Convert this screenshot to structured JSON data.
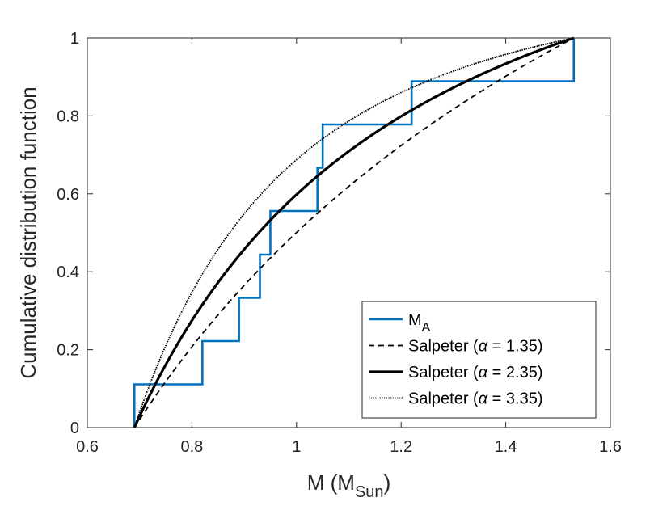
{
  "chart_data": {
    "type": "line",
    "xlabel": {
      "main": "M (M",
      "sub": "Sun",
      "close": ")"
    },
    "ylabel": "Cumulative distribution function",
    "xlim": [
      0.6,
      1.6
    ],
    "ylim": [
      0,
      1
    ],
    "xticks": [
      0.6,
      0.8,
      1.0,
      1.2,
      1.4,
      1.6
    ],
    "xtick_labels": [
      "0.6",
      "0.8",
      "1",
      "1.2",
      "1.4",
      "1.6"
    ],
    "yticks": [
      0,
      0.2,
      0.4,
      0.6,
      0.8,
      1.0
    ],
    "ytick_labels": [
      "0",
      "0.2",
      "0.4",
      "0.6",
      "0.8",
      "1"
    ],
    "grid": false,
    "box": true,
    "legend_position": "bottom-right",
    "mass_range": [
      0.69,
      1.53
    ],
    "series": [
      {
        "name": "M_A",
        "legend": {
          "main": "M",
          "sub": "A",
          "suffix": ""
        },
        "kind": "stairs",
        "color": "#0072BD",
        "style": "solid",
        "x": [
          0.69,
          0.69,
          0.82,
          0.82,
          0.89,
          0.89,
          0.93,
          0.93,
          0.95,
          0.95,
          1.04,
          1.04,
          1.05,
          1.05,
          1.22,
          1.22,
          1.53,
          1.53
        ],
        "y": [
          0.0,
          0.111,
          0.111,
          0.222,
          0.222,
          0.333,
          0.333,
          0.444,
          0.444,
          0.556,
          0.556,
          0.667,
          0.667,
          0.778,
          0.778,
          0.889,
          0.889,
          1.0
        ]
      },
      {
        "name": "Salpeter (α = 1.35)",
        "legend": {
          "prefix": "Salpeter (",
          "alpha": "α",
          "suffix": " = 1.35)"
        },
        "kind": "salpeter",
        "alpha": 1.35,
        "color": "#000000",
        "style": "dashed"
      },
      {
        "name": "Salpeter (α = 2.35)",
        "legend": {
          "prefix": "Salpeter (",
          "alpha": "α",
          "suffix": " = 2.35)"
        },
        "kind": "salpeter",
        "alpha": 2.35,
        "color": "#000000",
        "style": "thick"
      },
      {
        "name": "Salpeter (α = 3.35)",
        "legend": {
          "prefix": "Salpeter (",
          "alpha": "α",
          "suffix": " = 3.35)"
        },
        "kind": "salpeter",
        "alpha": 3.35,
        "color": "#000000",
        "style": "dotted"
      }
    ]
  }
}
